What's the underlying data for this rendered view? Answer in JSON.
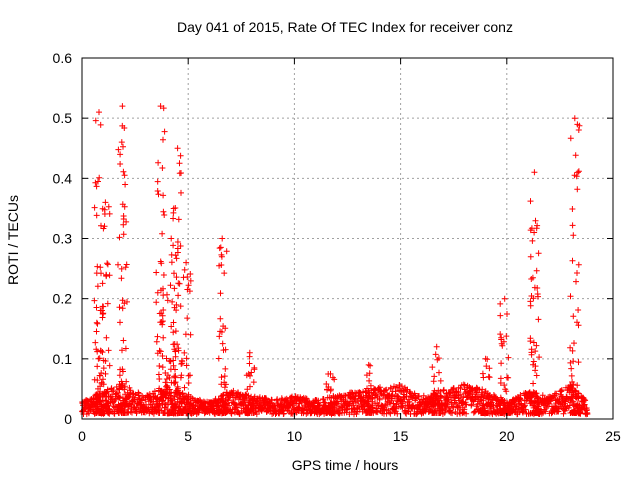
{
  "chart_data": {
    "type": "scatter",
    "title": "Day 041 of 2015, Rate Of TEC Index for receiver conz",
    "xlabel": "GPS time / hours",
    "ylabel": "ROTI / TECUs",
    "xlim": [
      0,
      25
    ],
    "ylim": [
      0,
      0.6
    ],
    "xticks": [
      0,
      5,
      10,
      15,
      20,
      25
    ],
    "yticks": [
      0,
      0.1,
      0.2,
      0.3,
      0.4,
      0.5,
      0.6
    ],
    "xtick_labels": [
      "0",
      "5",
      "10",
      "15",
      "20",
      "25"
    ],
    "ytick_labels": [
      "0",
      "0.1",
      "0.2",
      "0.3",
      "0.4",
      "0.5",
      "0.6"
    ],
    "grid": true,
    "marker": "+",
    "series": [
      {
        "name": "ROTI",
        "color": "#ff0000",
        "spikes": [
          {
            "x": 0.8,
            "max": 0.51
          },
          {
            "x": 1.1,
            "max": 0.36
          },
          {
            "x": 1.9,
            "max": 0.52
          },
          {
            "x": 3.7,
            "max": 0.52
          },
          {
            "x": 4.2,
            "max": 0.3
          },
          {
            "x": 4.5,
            "max": 0.45
          },
          {
            "x": 4.9,
            "max": 0.26
          },
          {
            "x": 6.6,
            "max": 0.3
          },
          {
            "x": 7.9,
            "max": 0.11
          },
          {
            "x": 11.7,
            "max": 0.075
          },
          {
            "x": 13.5,
            "max": 0.09
          },
          {
            "x": 16.7,
            "max": 0.12
          },
          {
            "x": 19.0,
            "max": 0.1
          },
          {
            "x": 19.9,
            "max": 0.2
          },
          {
            "x": 21.3,
            "max": 0.41
          },
          {
            "x": 23.2,
            "max": 0.5
          }
        ],
        "baseline": [
          [
            0.0,
            0.02
          ],
          [
            1.0,
            0.04
          ],
          [
            2.0,
            0.05
          ],
          [
            3.0,
            0.03
          ],
          [
            4.0,
            0.05
          ],
          [
            5.0,
            0.03
          ],
          [
            6.0,
            0.02
          ],
          [
            7.0,
            0.04
          ],
          [
            8.0,
            0.03
          ],
          [
            9.0,
            0.025
          ],
          [
            10.0,
            0.03
          ],
          [
            11.0,
            0.025
          ],
          [
            12.0,
            0.03
          ],
          [
            13.0,
            0.04
          ],
          [
            14.0,
            0.045
          ],
          [
            15.0,
            0.05
          ],
          [
            16.0,
            0.03
          ],
          [
            17.0,
            0.04
          ],
          [
            18.0,
            0.05
          ],
          [
            19.0,
            0.04
          ],
          [
            20.0,
            0.02
          ],
          [
            21.0,
            0.04
          ],
          [
            22.0,
            0.03
          ],
          [
            23.0,
            0.05
          ],
          [
            23.8,
            0.02
          ]
        ]
      }
    ]
  }
}
